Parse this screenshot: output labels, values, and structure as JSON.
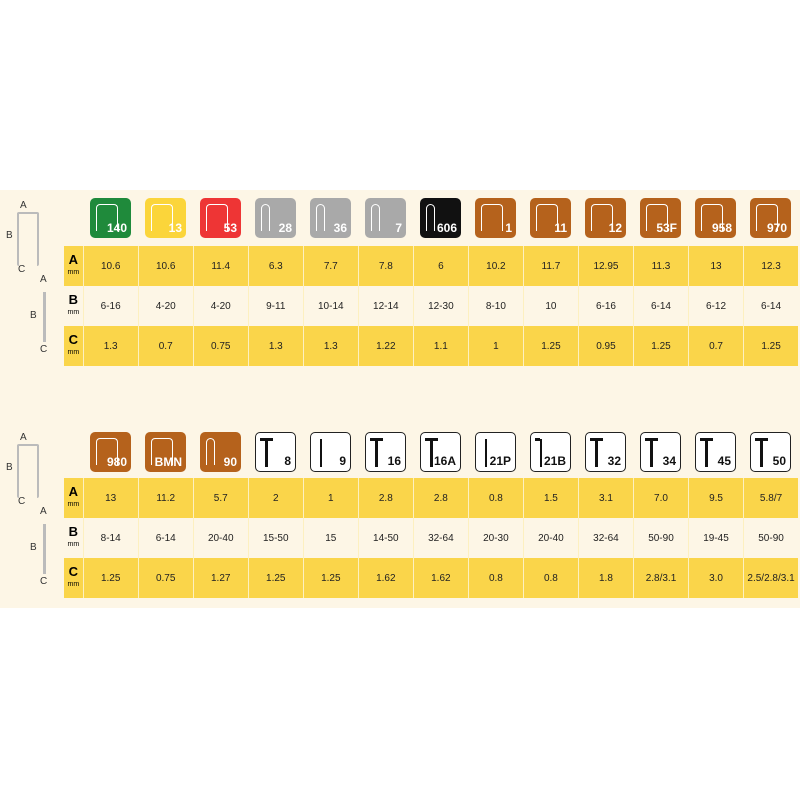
{
  "row_labels": [
    {
      "letter": "A",
      "unit": "mm"
    },
    {
      "letter": "B",
      "unit": "mm"
    },
    {
      "letter": "C",
      "unit": "mm"
    }
  ],
  "diagram_labels": {
    "a": "A",
    "b": "B",
    "c": "C"
  },
  "colors": {
    "green": "#1f8a3b",
    "yellow": "#fbd53a",
    "red": "#ee3535",
    "gray": "#a9a9a9",
    "black": "#111111",
    "brown": "#b5621c",
    "row_yellow": "#fad54a",
    "background": "#fdf6e6"
  },
  "tables": [
    {
      "items": [
        {
          "code": "140",
          "icon": "staple-flat",
          "color": "green",
          "a": "10.6",
          "b": "6-16",
          "c": "1.3"
        },
        {
          "code": "13",
          "icon": "staple-flat",
          "color": "yellow",
          "a": "10.6",
          "b": "4-20",
          "c": "0.7"
        },
        {
          "code": "53",
          "icon": "staple-flat",
          "color": "red",
          "a": "11.4",
          "b": "4-20",
          "c": "0.75"
        },
        {
          "code": "28",
          "icon": "staple-round",
          "color": "gray",
          "a": "6.3",
          "b": "9-11",
          "c": "1.3"
        },
        {
          "code": "36",
          "icon": "staple-round",
          "color": "gray",
          "a": "7.7",
          "b": "10-14",
          "c": "1.3"
        },
        {
          "code": "7",
          "icon": "staple-round",
          "color": "gray",
          "a": "7.8",
          "b": "12-14",
          "c": "1.22"
        },
        {
          "code": "606",
          "icon": "staple-round",
          "color": "black",
          "a": "6",
          "b": "12-30",
          "c": "1.1"
        },
        {
          "code": "1",
          "icon": "staple-flat",
          "color": "brown",
          "a": "10.2",
          "b": "8-10",
          "c": "1"
        },
        {
          "code": "11",
          "icon": "staple-flat",
          "color": "brown",
          "a": "11.7",
          "b": "10",
          "c": "1.25"
        },
        {
          "code": "12",
          "icon": "staple-flat",
          "color": "brown",
          "a": "12.95",
          "b": "6-16",
          "c": "0.95"
        },
        {
          "code": "53F",
          "icon": "staple-flat",
          "color": "brown",
          "a": "11.3",
          "b": "6-14",
          "c": "1.25"
        },
        {
          "code": "958",
          "icon": "staple-flat",
          "color": "brown",
          "a": "13",
          "b": "6-12",
          "c": "0.7"
        },
        {
          "code": "970",
          "icon": "staple-flat",
          "color": "brown",
          "a": "12.3",
          "b": "6-14",
          "c": "1.25"
        }
      ]
    },
    {
      "items": [
        {
          "code": "980",
          "icon": "staple-flat",
          "color": "brown",
          "a": "13",
          "b": "8-14",
          "c": "1.25"
        },
        {
          "code": "BMN",
          "icon": "staple-flat",
          "color": "brown",
          "a": "11.2",
          "b": "6-14",
          "c": "0.75"
        },
        {
          "code": "90",
          "icon": "staple-round",
          "color": "brown",
          "a": "5.7",
          "b": "20-40",
          "c": "1.27"
        },
        {
          "code": "8",
          "icon": "nail",
          "color": "white",
          "a": "2",
          "b": "15-50",
          "c": "1.25"
        },
        {
          "code": "9",
          "icon": "pin",
          "color": "white",
          "a": "1",
          "b": "15",
          "c": "1.25"
        },
        {
          "code": "16",
          "icon": "nail",
          "color": "white",
          "a": "2.8",
          "b": "14-50",
          "c": "1.62"
        },
        {
          "code": "16A",
          "icon": "nail",
          "color": "white",
          "a": "2.8",
          "b": "32-64",
          "c": "1.62"
        },
        {
          "code": "21P",
          "icon": "pin",
          "color": "white",
          "a": "0.8",
          "b": "20-30",
          "c": "0.8"
        },
        {
          "code": "21B",
          "icon": "brad",
          "color": "white",
          "a": "1.5",
          "b": "20-40",
          "c": "0.8"
        },
        {
          "code": "32",
          "icon": "nail",
          "color": "white",
          "a": "3.1",
          "b": "32-64",
          "c": "1.8"
        },
        {
          "code": "34",
          "icon": "nail",
          "color": "white",
          "a": "7.0",
          "b": "50-90",
          "c": "2.8/3.1"
        },
        {
          "code": "45",
          "icon": "ring-nail",
          "color": "white",
          "a": "9.5",
          "b": "19-45",
          "c": "3.0"
        },
        {
          "code": "50",
          "icon": "ring-nail",
          "color": "white",
          "a": "5.8/7",
          "b": "50-90",
          "c": "2.5/2.8/3.1"
        }
      ]
    }
  ]
}
